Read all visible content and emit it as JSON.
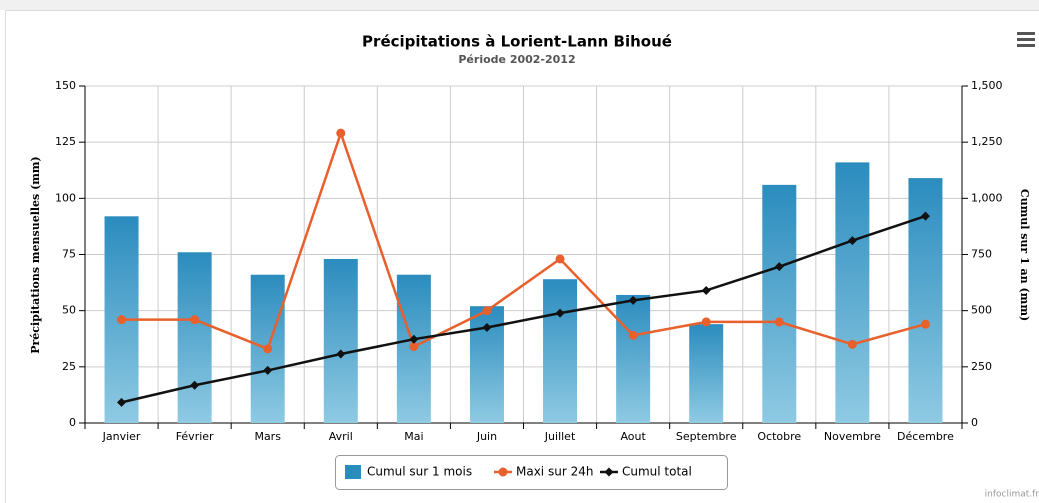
{
  "chart_data": {
    "type": "bar",
    "title": "Précipitations à Lorient-Lann Bihoué",
    "subtitle": "Période 2002-2012",
    "ylabel": "Précipitations mensuelles (mm)",
    "y2label": "Cumul sur 1 an (mm)",
    "credit": "infoclimat.fr",
    "categories": [
      "Janvier",
      "Février",
      "Mars",
      "Avril",
      "Mai",
      "Juin",
      "Juillet",
      "Aout",
      "Septembre",
      "Octobre",
      "Novembre",
      "Décembre"
    ],
    "series": [
      {
        "name": "Cumul sur 1 mois",
        "type": "bar",
        "color": "#2b8cbe",
        "values": [
          92,
          76,
          66,
          73,
          66,
          52,
          64,
          57,
          44,
          106,
          116,
          109
        ]
      },
      {
        "name": "Maxi sur 24h",
        "type": "line",
        "color": "#e8602c",
        "values": [
          46,
          46,
          33,
          129,
          34,
          50,
          73,
          39,
          45,
          45,
          35,
          44
        ]
      },
      {
        "name": "Cumul total",
        "type": "line",
        "color": "#111111",
        "axis": "y2",
        "values": [
          92,
          168,
          234,
          307,
          373,
          425,
          489,
          546,
          590,
          696,
          812,
          921
        ]
      }
    ],
    "ylim": [
      0,
      150
    ],
    "yticks": [
      0,
      25,
      50,
      75,
      100,
      125,
      150
    ],
    "y2lim": [
      0,
      1500
    ],
    "y2ticks": [
      0,
      250,
      500,
      750,
      {
        "value": 1000,
        "label": "1,000"
      },
      {
        "value": 1250,
        "label": "1,250"
      },
      {
        "value": 1500,
        "label": "1,500"
      }
    ],
    "grid": true,
    "legend": "bottom"
  }
}
